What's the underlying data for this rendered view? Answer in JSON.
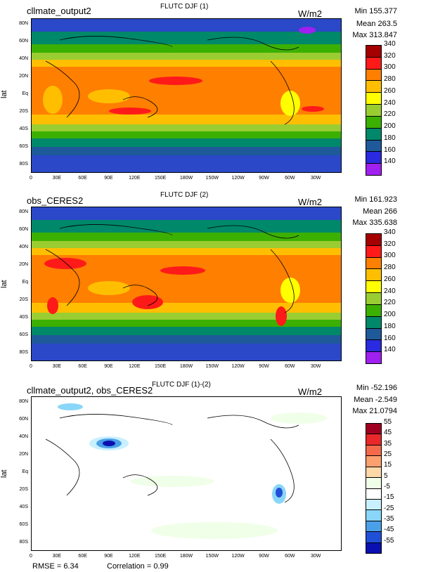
{
  "panels": [
    {
      "title_left": "cllmate_output2",
      "title_center": "FLUTC DJF (1)",
      "units": "W/m2",
      "stats": {
        "min": "Min 155.377",
        "mean": "Mean 263.5",
        "max": "Max 313.847"
      },
      "ylabel": "lat",
      "colorbar": {
        "labels": [
          "340",
          "320",
          "300",
          "280",
          "260",
          "240",
          "220",
          "200",
          "180",
          "160",
          "140"
        ],
        "colors": [
          "#a40000",
          "#ff1a1a",
          "#ff7f00",
          "#ffbf00",
          "#ffff00",
          "#9acd32",
          "#3cb000",
          "#00886a",
          "#1e5a9a",
          "#2a2ae0",
          "#a020f0"
        ]
      }
    },
    {
      "title_left": "obs_CERES2",
      "title_center": "FLUTC DJF (2)",
      "units": "W/m2",
      "stats": {
        "min": "Min 161.923",
        "mean": "Mean 266",
        "max": "Max 335.638"
      },
      "ylabel": "lat",
      "colorbar": {
        "labels": [
          "340",
          "320",
          "300",
          "280",
          "260",
          "240",
          "220",
          "200",
          "180",
          "160",
          "140"
        ],
        "colors": [
          "#a40000",
          "#ff1a1a",
          "#ff7f00",
          "#ffbf00",
          "#ffff00",
          "#9acd32",
          "#3cb000",
          "#00886a",
          "#1e5a9a",
          "#2a2ae0",
          "#a020f0"
        ]
      }
    },
    {
      "title_left": "cllmate_output2, obs_CERES2",
      "title_center": "FLUTC DJF (1)-(2)",
      "units": "W/m2",
      "stats": {
        "min": "Min -52.196",
        "mean": "Mean -2.549",
        "max": "Max 21.0794"
      },
      "ylabel": "lat",
      "colorbar": {
        "labels": [
          "55",
          "45",
          "35",
          "25",
          "15",
          "5",
          "-5",
          "-15",
          "-25",
          "-35",
          "-45",
          "-55"
        ],
        "colors": [
          "#a00020",
          "#e8282a",
          "#f46a4a",
          "#fca070",
          "#ffd8a8",
          "#f0ffe8",
          "#ffffff",
          "#c8f0ff",
          "#8ad6f8",
          "#4aa0e8",
          "#2050d8",
          "#0a10b0"
        ]
      },
      "footer": {
        "rmse": "RMSE = 6.34",
        "correlation": "Correlation = 0.99"
      }
    }
  ],
  "lat_ticks": [
    "80N",
    "60N",
    "40N",
    "20N",
    "Eq",
    "20S",
    "40S",
    "60S",
    "80S"
  ],
  "lon_ticks": [
    "0",
    "30E",
    "60E",
    "90E",
    "120E",
    "150E",
    "180W",
    "150W",
    "120W",
    "90W",
    "60W",
    "30W"
  ]
}
